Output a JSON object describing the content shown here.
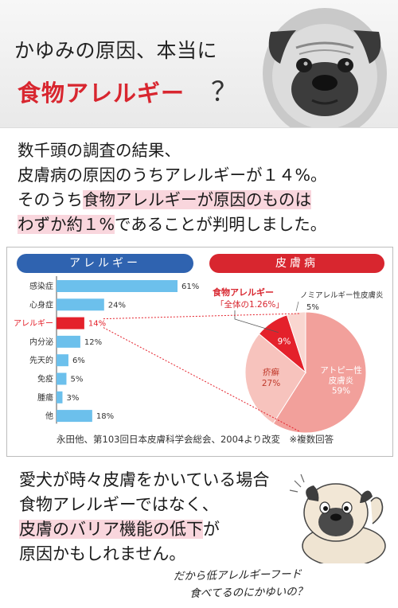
{
  "header": {
    "line1": "かゆみの原因、本当に",
    "line2": "食物アレルギー",
    "question": "？"
  },
  "intro": {
    "r1": "数千頭の調査の結果、",
    "r2": "皮膚病の原因のうちアレルギーが１４%。",
    "r3a": "そのうち",
    "r3b": "食物アレルギーが原因のものは",
    "r4a": "わずか約１%",
    "r4b": "であることが判明しました。"
  },
  "chart_data": [
    {
      "type": "bar",
      "title": "アレルギー",
      "categories": [
        "感染症",
        "心身症",
        "アレルギー",
        "内分泌",
        "先天的",
        "免疫",
        "腫瘍",
        "他"
      ],
      "values": [
        61,
        24,
        14,
        12,
        6,
        5,
        3,
        18
      ],
      "value_labels": [
        "61%",
        "24%",
        "14%",
        "12%",
        "6%",
        "5%",
        "3%",
        "18%"
      ],
      "highlight": "アレルギー",
      "colors": {
        "bar": "#6cc0ec",
        "highlight": "#e4212b"
      },
      "xlim": [
        0,
        61
      ]
    },
    {
      "type": "pie",
      "title": "皮膚病",
      "slices": [
        {
          "label": "アトピー性\n皮膚炎",
          "value": 59,
          "value_label": "59%",
          "color": "#f2a09b"
        },
        {
          "label": "疥癬",
          "value": 27,
          "value_label": "27%",
          "color": "#f7c3bd"
        },
        {
          "label": "食物アレルギー",
          "value": 9,
          "value_label": "9%",
          "color": "#e4212b"
        },
        {
          "label": "ノミアレルギー性皮膚炎",
          "value": 5,
          "value_label": "5%",
          "color": "#f9d6d0"
        }
      ],
      "annotation_title": "食物アレルギー",
      "annotation_sub": "「全体の1.26%」"
    }
  ],
  "caption": "永田他、第103回日本皮膚科学会総会、2004より改変　※複数回答",
  "lower": {
    "r1": "愛犬が時々皮膚をかいている場合",
    "r2": "食物アレルギーではなく、",
    "r3a": "皮膚のバリア機能の低下",
    "r3b": "が",
    "r4": "原因かもしれません。"
  },
  "note": {
    "l1": "だから低アレルギーフード",
    "l2": "食べてるのにかゆいの？"
  }
}
